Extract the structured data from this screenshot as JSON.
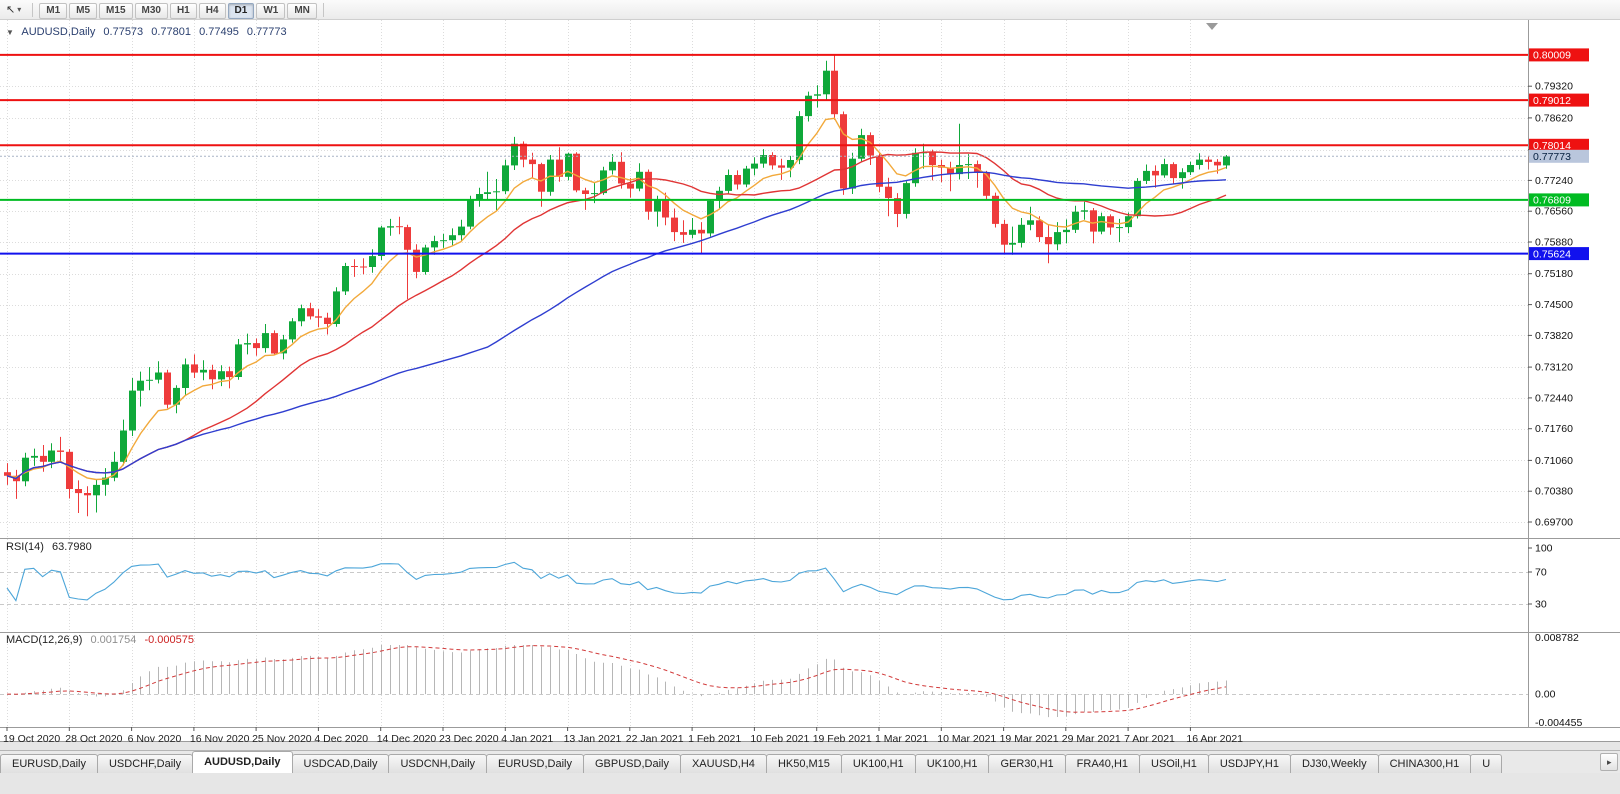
{
  "icons": {
    "cursor_tool": "↖",
    "dropdown_caret": "▾",
    "collapse_triangle": "▼",
    "tab_scroll_right": "▸"
  },
  "toolbar": {
    "timeframes": [
      "M1",
      "M5",
      "M15",
      "M30",
      "H1",
      "H4",
      "D1",
      "W1",
      "MN"
    ],
    "active_timeframe": "D1"
  },
  "chart": {
    "symbol": "AUDUSD,Daily",
    "ohlc_line": {
      "open": "0.77573",
      "high": "0.77801",
      "low": "0.77495",
      "close": "0.77773"
    },
    "price_axis_labels": [
      "0.79320",
      "0.78620",
      "0.77920",
      "0.77240",
      "0.76560",
      "0.75880",
      "0.75180",
      "0.74500",
      "0.73820",
      "0.73120",
      "0.72440",
      "0.71760",
      "0.71060",
      "0.70380",
      "0.69700"
    ],
    "date_labels": [
      "19 Oct 2020",
      "28 Oct 2020",
      "6 Nov 2020",
      "16 Nov 2020",
      "25 Nov 2020",
      "4 Dec 2020",
      "14 Dec 2020",
      "23 Dec 2020",
      "4 Jan 2021",
      "13 Jan 2021",
      "22 Jan 2021",
      "1 Feb 2021",
      "10 Feb 2021",
      "19 Feb 2021",
      "1 Mar 2021",
      "10 Mar 2021",
      "19 Mar 2021",
      "29 Mar 2021",
      "7 Apr 2021",
      "16 Apr 2021"
    ],
    "hlines": [
      {
        "price": 0.80009,
        "label": "0.80009",
        "color": "#ee1111"
      },
      {
        "price": 0.79012,
        "label": "0.79012",
        "color": "#ee1111"
      },
      {
        "price": 0.78014,
        "label": "0.78014",
        "color": "#ee1111"
      },
      {
        "price": 0.76809,
        "label": "0.76809",
        "color": "#00bb22"
      },
      {
        "price": 0.75624,
        "label": "0.75624",
        "color": "#1111ee"
      }
    ],
    "current_price": {
      "value": 0.77773,
      "label": "0.77773",
      "box_color": "#b9c6dc"
    },
    "colors": {
      "bull": "#0fa83a",
      "bear": "#ee3b3b"
    }
  },
  "chart_data": {
    "type": "candlestick",
    "symbol": "AUDUSD",
    "timeframe": "Daily",
    "candles": [
      [
        0.708,
        0.71,
        0.7052,
        0.7072
      ],
      [
        0.7072,
        0.7085,
        0.7021,
        0.706
      ],
      [
        0.706,
        0.7123,
        0.7049,
        0.7112
      ],
      [
        0.7112,
        0.7132,
        0.7094,
        0.7116
      ],
      [
        0.7116,
        0.714,
        0.7081,
        0.7103
      ],
      [
        0.7103,
        0.7144,
        0.7089,
        0.7128
      ],
      [
        0.7128,
        0.7158,
        0.7105,
        0.7125
      ],
      [
        0.7125,
        0.7131,
        0.7022,
        0.7043
      ],
      [
        0.7043,
        0.7062,
        0.699,
        0.7034
      ],
      [
        0.7034,
        0.7049,
        0.6983,
        0.7029
      ],
      [
        0.7029,
        0.7063,
        0.6991,
        0.7052
      ],
      [
        0.7052,
        0.7089,
        0.7028,
        0.7068
      ],
      [
        0.7068,
        0.7125,
        0.706,
        0.7103
      ],
      [
        0.7103,
        0.7196,
        0.7095,
        0.7172
      ],
      [
        0.7172,
        0.7288,
        0.716,
        0.726
      ],
      [
        0.726,
        0.7302,
        0.7225,
        0.7282
      ],
      [
        0.7282,
        0.7312,
        0.7261,
        0.7284
      ],
      [
        0.7284,
        0.7325,
        0.7276,
        0.73
      ],
      [
        0.73,
        0.7306,
        0.7221,
        0.7229
      ],
      [
        0.7229,
        0.7272,
        0.721,
        0.7266
      ],
      [
        0.7266,
        0.7331,
        0.7251,
        0.7318
      ],
      [
        0.7318,
        0.734,
        0.7288,
        0.73
      ],
      [
        0.73,
        0.7327,
        0.7283,
        0.7306
      ],
      [
        0.7306,
        0.7317,
        0.7263,
        0.7285
      ],
      [
        0.7285,
        0.7316,
        0.727,
        0.7303
      ],
      [
        0.7303,
        0.7313,
        0.7265,
        0.729
      ],
      [
        0.729,
        0.7374,
        0.7284,
        0.7362
      ],
      [
        0.7362,
        0.7386,
        0.734,
        0.7365
      ],
      [
        0.7365,
        0.7375,
        0.7337,
        0.7354
      ],
      [
        0.7354,
        0.7407,
        0.7344,
        0.7387
      ],
      [
        0.7387,
        0.7393,
        0.7339,
        0.7342
      ],
      [
        0.7342,
        0.7383,
        0.7329,
        0.7373
      ],
      [
        0.7373,
        0.742,
        0.7366,
        0.7413
      ],
      [
        0.7413,
        0.745,
        0.7402,
        0.7442
      ],
      [
        0.7442,
        0.7454,
        0.7417,
        0.7424
      ],
      [
        0.7424,
        0.744,
        0.74,
        0.7421
      ],
      [
        0.7421,
        0.7432,
        0.7384,
        0.7407
      ],
      [
        0.7407,
        0.7488,
        0.7401,
        0.7479
      ],
      [
        0.7479,
        0.7542,
        0.7471,
        0.7535
      ],
      [
        0.7535,
        0.755,
        0.7511,
        0.7534
      ],
      [
        0.7534,
        0.7552,
        0.7517,
        0.7533
      ],
      [
        0.7533,
        0.7572,
        0.752,
        0.7557
      ],
      [
        0.7557,
        0.7624,
        0.7548,
        0.762
      ],
      [
        0.762,
        0.7639,
        0.7602,
        0.7623
      ],
      [
        0.7623,
        0.7644,
        0.7605,
        0.7621
      ],
      [
        0.7621,
        0.7626,
        0.7462,
        0.7571
      ],
      [
        0.7571,
        0.7583,
        0.7508,
        0.7522
      ],
      [
        0.7522,
        0.7582,
        0.7516,
        0.7576
      ],
      [
        0.7576,
        0.7602,
        0.756,
        0.759
      ],
      [
        0.759,
        0.7606,
        0.7575,
        0.7592
      ],
      [
        0.7592,
        0.7618,
        0.758,
        0.7603
      ],
      [
        0.7603,
        0.7637,
        0.759,
        0.7622
      ],
      [
        0.7622,
        0.769,
        0.7616,
        0.7683
      ],
      [
        0.7683,
        0.7708,
        0.7666,
        0.7694
      ],
      [
        0.7694,
        0.7743,
        0.7682,
        0.7698
      ],
      [
        0.7698,
        0.7727,
        0.7658,
        0.77
      ],
      [
        0.77,
        0.777,
        0.7694,
        0.7757
      ],
      [
        0.7757,
        0.782,
        0.7747,
        0.7805
      ],
      [
        0.7805,
        0.781,
        0.7753,
        0.777
      ],
      [
        0.777,
        0.7785,
        0.7729,
        0.776
      ],
      [
        0.776,
        0.7763,
        0.7666,
        0.7699
      ],
      [
        0.7699,
        0.778,
        0.769,
        0.777
      ],
      [
        0.777,
        0.7797,
        0.7721,
        0.7732
      ],
      [
        0.7732,
        0.7785,
        0.7724,
        0.7783
      ],
      [
        0.7783,
        0.7786,
        0.7698,
        0.7702
      ],
      [
        0.7702,
        0.7708,
        0.7659,
        0.7694
      ],
      [
        0.7694,
        0.772,
        0.7674,
        0.7696
      ],
      [
        0.7696,
        0.7754,
        0.7692,
        0.7746
      ],
      [
        0.7746,
        0.7782,
        0.7737,
        0.7765
      ],
      [
        0.7765,
        0.7786,
        0.7706,
        0.7717
      ],
      [
        0.7717,
        0.7729,
        0.7686,
        0.7706
      ],
      [
        0.7706,
        0.7762,
        0.77,
        0.7743
      ],
      [
        0.7743,
        0.7748,
        0.7637,
        0.7655
      ],
      [
        0.7655,
        0.769,
        0.7622,
        0.7682
      ],
      [
        0.7682,
        0.7697,
        0.7625,
        0.7642
      ],
      [
        0.7642,
        0.7662,
        0.759,
        0.761
      ],
      [
        0.761,
        0.7636,
        0.7586,
        0.7604
      ],
      [
        0.7604,
        0.7641,
        0.7596,
        0.7615
      ],
      [
        0.7615,
        0.7632,
        0.7563,
        0.7607
      ],
      [
        0.7607,
        0.7682,
        0.76,
        0.7679
      ],
      [
        0.7679,
        0.771,
        0.7662,
        0.7701
      ],
      [
        0.7701,
        0.7748,
        0.7694,
        0.7736
      ],
      [
        0.7736,
        0.7746,
        0.7704,
        0.7715
      ],
      [
        0.7715,
        0.7756,
        0.7709,
        0.775
      ],
      [
        0.775,
        0.7775,
        0.7735,
        0.7761
      ],
      [
        0.7761,
        0.7793,
        0.7752,
        0.778
      ],
      [
        0.778,
        0.7786,
        0.7748,
        0.7757
      ],
      [
        0.7757,
        0.7772,
        0.7725,
        0.7752
      ],
      [
        0.7752,
        0.7778,
        0.7731,
        0.7769
      ],
      [
        0.7769,
        0.7877,
        0.776,
        0.7866
      ],
      [
        0.7866,
        0.792,
        0.7854,
        0.7911
      ],
      [
        0.7911,
        0.7934,
        0.7885,
        0.7914
      ],
      [
        0.7914,
        0.7988,
        0.79,
        0.7966
      ],
      [
        0.7966,
        0.8001,
        0.7858,
        0.787
      ],
      [
        0.787,
        0.7876,
        0.7692,
        0.7706
      ],
      [
        0.7706,
        0.7785,
        0.7694,
        0.7772
      ],
      [
        0.7772,
        0.7838,
        0.7765,
        0.7824
      ],
      [
        0.7824,
        0.783,
        0.7758,
        0.7779
      ],
      [
        0.7779,
        0.7787,
        0.7698,
        0.771
      ],
      [
        0.771,
        0.773,
        0.7645,
        0.7685
      ],
      [
        0.7685,
        0.7696,
        0.7621,
        0.765
      ],
      [
        0.765,
        0.7722,
        0.764,
        0.7718
      ],
      [
        0.7718,
        0.7795,
        0.771,
        0.7785
      ],
      [
        0.7785,
        0.7805,
        0.775,
        0.7786
      ],
      [
        0.7786,
        0.7792,
        0.7724,
        0.7758
      ],
      [
        0.7758,
        0.777,
        0.772,
        0.7752
      ],
      [
        0.7752,
        0.7765,
        0.77,
        0.7738
      ],
      [
        0.7738,
        0.7849,
        0.7726,
        0.7758
      ],
      [
        0.7758,
        0.7782,
        0.7727,
        0.776
      ],
      [
        0.776,
        0.7768,
        0.7708,
        0.7742
      ],
      [
        0.7742,
        0.7745,
        0.7682,
        0.769
      ],
      [
        0.769,
        0.7697,
        0.762,
        0.7628
      ],
      [
        0.7628,
        0.7637,
        0.7562,
        0.7582
      ],
      [
        0.7582,
        0.7622,
        0.756,
        0.7586
      ],
      [
        0.7586,
        0.7641,
        0.7576,
        0.7626
      ],
      [
        0.7626,
        0.7666,
        0.7614,
        0.7636
      ],
      [
        0.7636,
        0.7645,
        0.7588,
        0.7599
      ],
      [
        0.7599,
        0.7625,
        0.7541,
        0.7583
      ],
      [
        0.7583,
        0.7632,
        0.757,
        0.761
      ],
      [
        0.761,
        0.7638,
        0.7585,
        0.7615
      ],
      [
        0.7615,
        0.7668,
        0.7608,
        0.7655
      ],
      [
        0.7655,
        0.7677,
        0.7637,
        0.7658
      ],
      [
        0.7658,
        0.7663,
        0.7585,
        0.7611
      ],
      [
        0.7611,
        0.7653,
        0.7605,
        0.7645
      ],
      [
        0.7645,
        0.7649,
        0.7604,
        0.762
      ],
      [
        0.762,
        0.7639,
        0.7588,
        0.7621
      ],
      [
        0.7621,
        0.7653,
        0.7608,
        0.7645
      ],
      [
        0.7645,
        0.7729,
        0.764,
        0.7723
      ],
      [
        0.7723,
        0.7759,
        0.7716,
        0.7745
      ],
      [
        0.7745,
        0.7757,
        0.7708,
        0.7735
      ],
      [
        0.7735,
        0.7772,
        0.773,
        0.776
      ],
      [
        0.776,
        0.7764,
        0.7715,
        0.7729
      ],
      [
        0.7729,
        0.7751,
        0.7706,
        0.7742
      ],
      [
        0.7742,
        0.7765,
        0.7736,
        0.7758
      ],
      [
        0.7758,
        0.7784,
        0.7748,
        0.777
      ],
      [
        0.777,
        0.7778,
        0.7748,
        0.7765
      ],
      [
        0.7765,
        0.7771,
        0.7739,
        0.7757
      ],
      [
        0.77573,
        0.77801,
        0.77495,
        0.77773
      ]
    ],
    "ma_overlays": [
      {
        "type": "ema",
        "period": 8,
        "color": "#f2a93b"
      },
      {
        "type": "sma",
        "period": 21,
        "color": "#e03535"
      },
      {
        "type": "sma",
        "period": 55,
        "color": "#2f3ed0"
      }
    ],
    "indicators": {
      "rsi": {
        "label": "RSI(14)",
        "value": "63.7980",
        "period": 14,
        "levels": [
          100,
          70,
          30
        ],
        "color": "#4da6d9"
      },
      "macd": {
        "label": "MACD(12,26,9)",
        "value_main": "0.001754",
        "value_signal": "-0.000575",
        "fast": 12,
        "slow": 26,
        "signal_period": 9,
        "axis_labels": [
          "0.008782",
          "0.00",
          "-0.004455"
        ],
        "scale_max": 0.008782,
        "scale_min": -0.004455,
        "hist_color": "#b6b6b6",
        "signal_color": "#d23b3b"
      }
    }
  },
  "tabs": {
    "items": [
      "EURUSD,Daily",
      "USDCHF,Daily",
      "AUDUSD,Daily",
      "USDCAD,Daily",
      "USDCNH,Daily",
      "EURUSD,Daily",
      "GBPUSD,Daily",
      "XAUUSD,H4",
      "HK50,M15",
      "UK100,H1",
      "UK100,H1",
      "GER30,H1",
      "FRA40,H1",
      "USOil,H1",
      "USDJPY,H1",
      "DJ30,Weekly",
      "CHINA300,H1",
      "U"
    ],
    "active_index": 2
  }
}
